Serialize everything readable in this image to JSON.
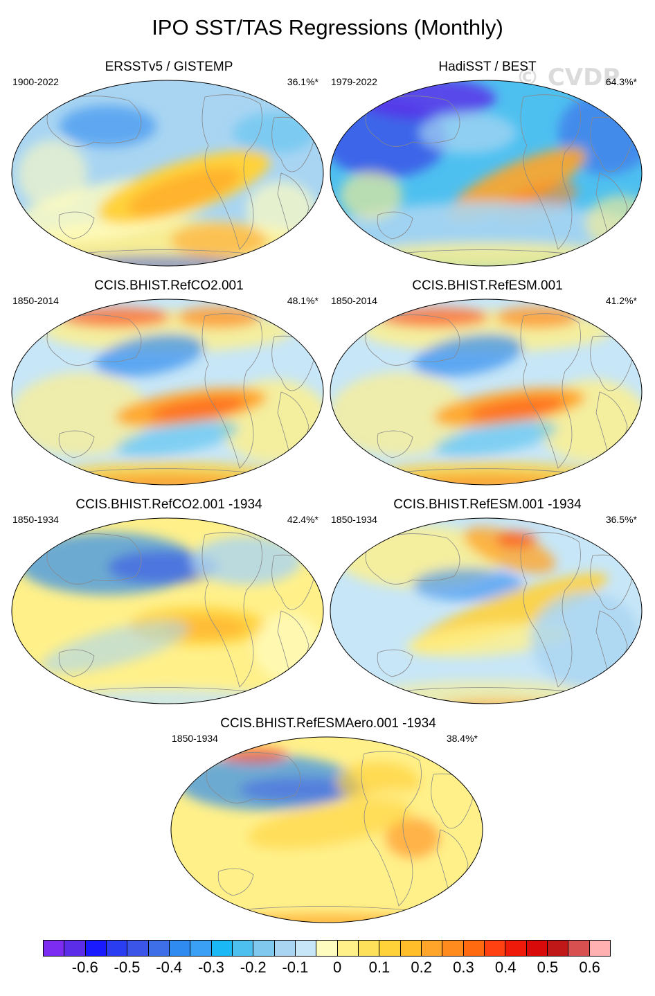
{
  "title": "IPO SST/TAS Regressions (Monthly)",
  "watermark": "© CVDP",
  "panels": [
    {
      "title": "ERSSTv5 / GISTEMP",
      "years": "1900-2022",
      "pct": "36.1%*",
      "pattern": "obs1"
    },
    {
      "title": "HadiSST / BEST",
      "years": "1979-2022",
      "pct": "64.3%*",
      "pattern": "obs2"
    },
    {
      "title": "CCIS.BHIST.RefCO2.001",
      "years": "1850-2014",
      "pct": "48.1%*",
      "pattern": "model_warm"
    },
    {
      "title": "CCIS.BHIST.RefESM.001",
      "years": "1850-2014",
      "pct": "41.2%*",
      "pattern": "model_warm"
    },
    {
      "title": "CCIS.BHIST.RefCO2.001 -1934",
      "years": "1850-1934",
      "pct": "42.4%*",
      "pattern": "model_cool"
    },
    {
      "title": "CCIS.BHIST.RefESM.001 -1934",
      "years": "1850-1934",
      "pct": "36.5%*",
      "pattern": "model_pdo"
    },
    {
      "title": "CCIS.BHIST.RefESMAero.001 -1934",
      "years": "1850-1934",
      "pct": "38.4%*",
      "pattern": "model_aero"
    }
  ],
  "colorbar": {
    "colors": [
      "#7b2cf0",
      "#5b2de8",
      "#1a1aff",
      "#2a3df0",
      "#3a55e8",
      "#3e6ee8",
      "#2f8bf0",
      "#3aa0f5",
      "#1ab8f5",
      "#4ec0f0",
      "#80c8ee",
      "#a9d5f2",
      "#c7e6f7",
      "#fffcc0",
      "#fff08a",
      "#ffe05a",
      "#ffd23a",
      "#ffbe2a",
      "#ffa52a",
      "#ff8a1e",
      "#ff6a10",
      "#ff4010",
      "#f01a0a",
      "#d80a0a",
      "#c01818",
      "#d85050",
      "#ffb0b0"
    ],
    "labels": [
      "-0.6",
      "-0.5",
      "-0.4",
      "-0.3",
      "-0.2",
      "-0.1",
      "0",
      "0.1",
      "0.2",
      "0.3",
      "0.4",
      "0.5",
      "0.6"
    ]
  }
}
